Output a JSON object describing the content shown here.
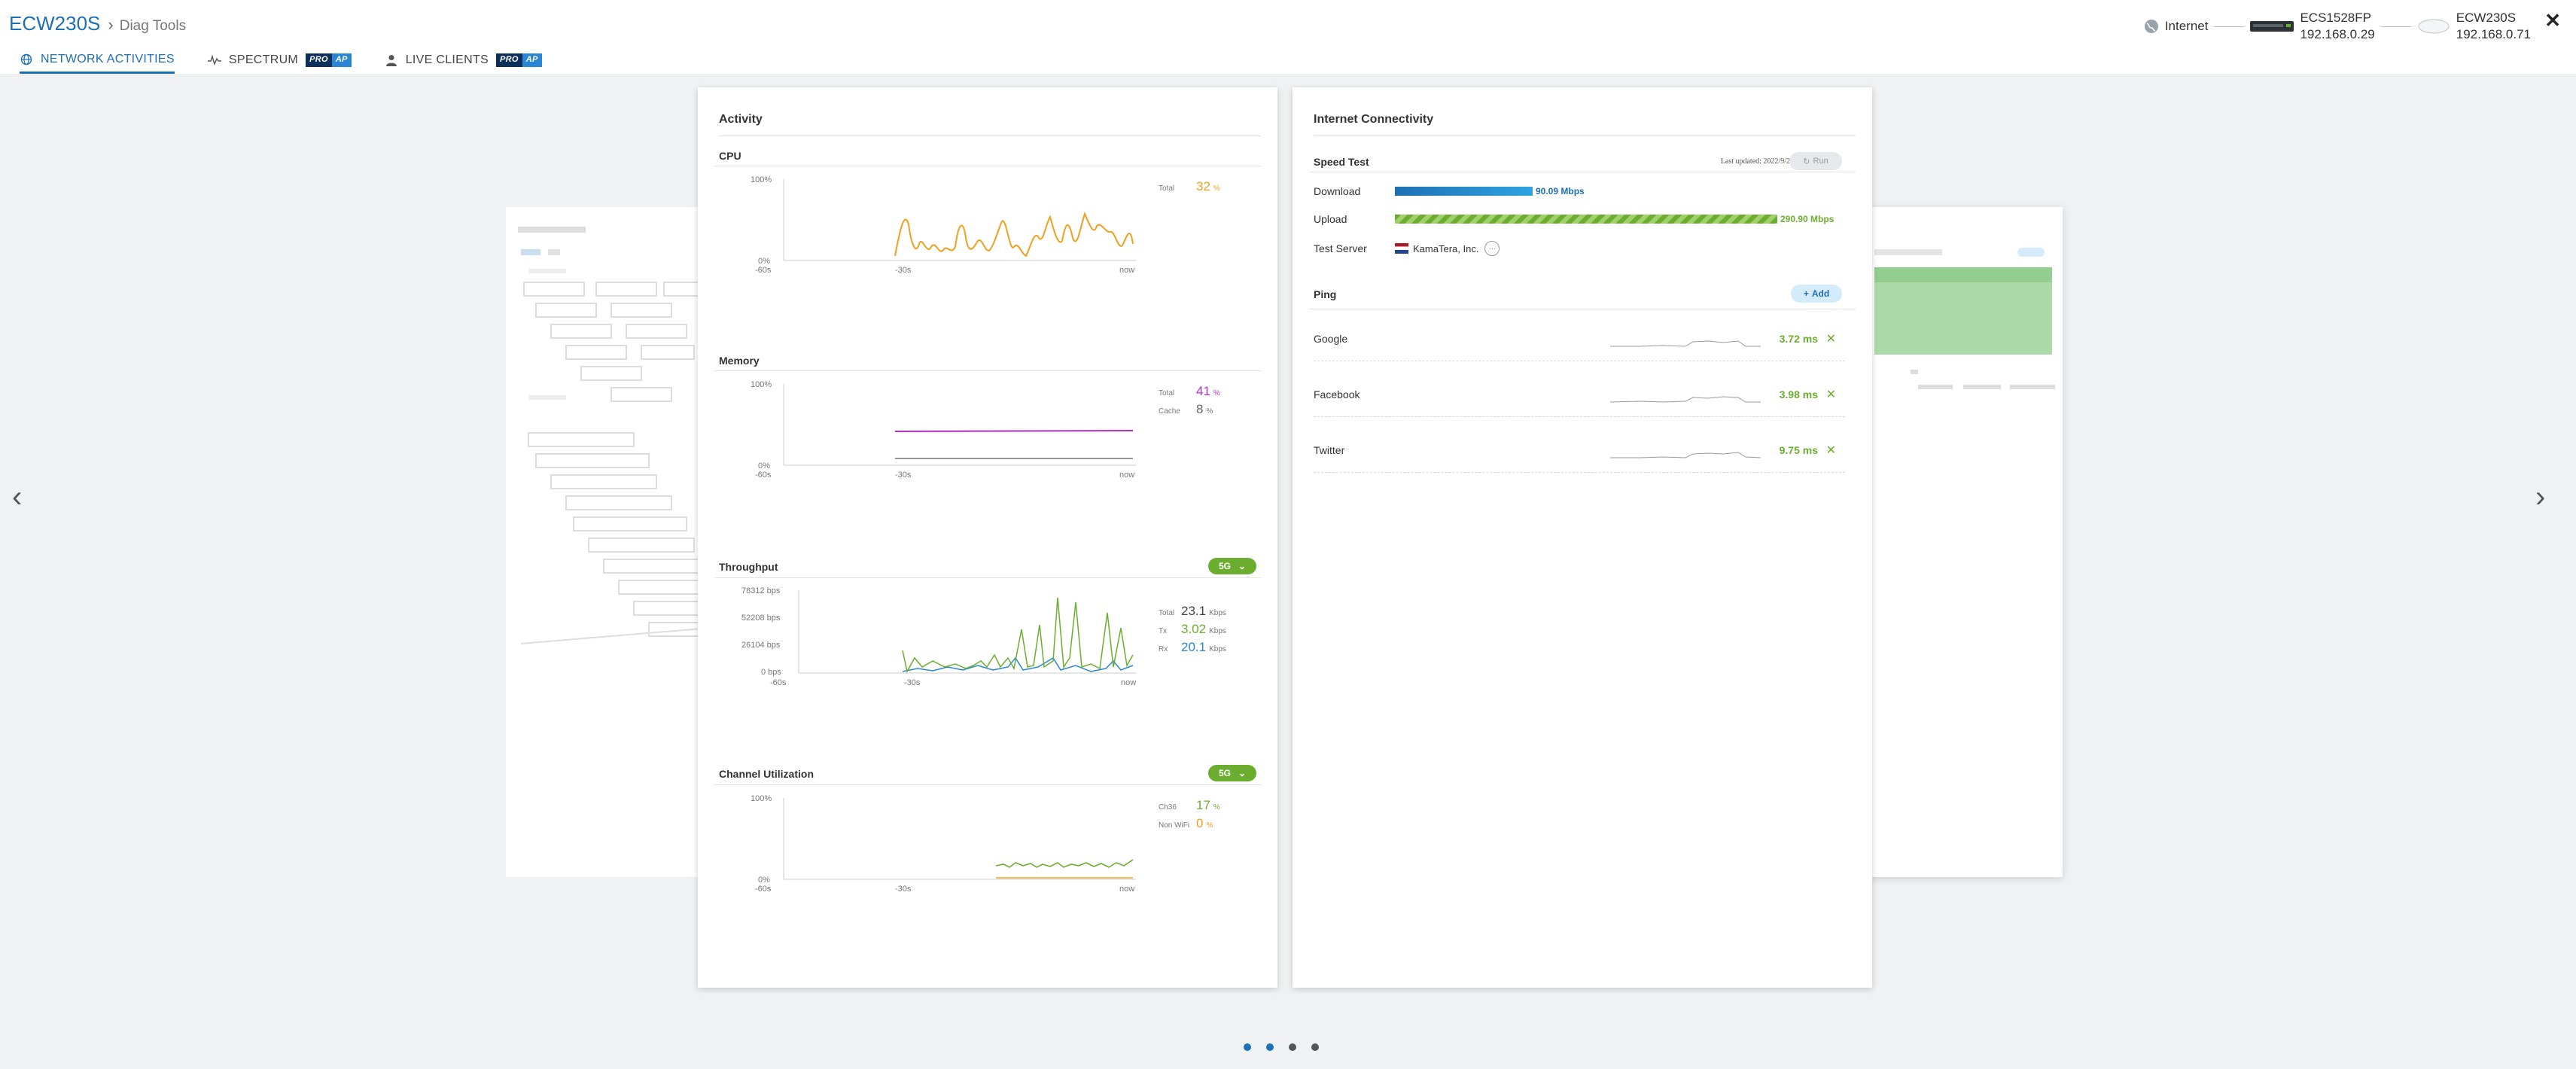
{
  "header": {
    "title": "ECW230S",
    "breadcrumb_sub": "Diag Tools",
    "tabs": [
      {
        "label": "NETWORK ACTIVITIES",
        "icon": "globe-icon",
        "active": true
      },
      {
        "label": "SPECTRUM",
        "icon": "pulse-icon",
        "badge": [
          "PRO",
          "AP"
        ]
      },
      {
        "label": "LIVE CLIENTS",
        "icon": "person-icon",
        "badge": [
          "PRO",
          "AP"
        ]
      }
    ],
    "topology": {
      "internet_label": "Internet",
      "switch_name": "ECS1528FP",
      "switch_ip": "192.168.0.29",
      "ap_name": "ECW230S",
      "ap_ip": "192.168.0.71"
    }
  },
  "activity": {
    "title": "Activity",
    "cpu": {
      "title": "CPU",
      "y_top": "100%",
      "y_bottom": "0%",
      "x_labels": [
        "-60s",
        "-30s",
        "now"
      ],
      "legend": [
        {
          "label": "Total",
          "value": "32",
          "unit": "%",
          "color": "#f0a020"
        }
      ]
    },
    "memory": {
      "title": "Memory",
      "y_top": "100%",
      "y_bottom": "0%",
      "x_labels": [
        "-60s",
        "-30s",
        "now"
      ],
      "legend": [
        {
          "label": "Total",
          "value": "41",
          "unit": "%",
          "color": "#b42ec8"
        },
        {
          "label": "Cache",
          "value": "8",
          "unit": "%",
          "color": "#666666"
        }
      ]
    },
    "throughput": {
      "title": "Throughput",
      "band": "5G",
      "y_labels": [
        "78312 bps",
        "52208 bps",
        "26104 bps",
        "0 bps"
      ],
      "x_labels": [
        "-60s",
        "-30s",
        "now"
      ],
      "legend": [
        {
          "label": "Total",
          "value": "23.1",
          "unit": "Kbps",
          "color": "#555555"
        },
        {
          "label": "Tx",
          "value": "3.02",
          "unit": "Kbps",
          "color": "#6bae2f"
        },
        {
          "label": "Rx",
          "value": "20.1",
          "unit": "Kbps",
          "color": "#2a86d4"
        }
      ]
    },
    "channel": {
      "title": "Channel Utilization",
      "band": "5G",
      "y_top": "100%",
      "y_bottom": "0%",
      "x_labels": [
        "-60s",
        "-30s",
        "now"
      ],
      "legend": [
        {
          "label": "Ch36",
          "value": "17",
          "unit": "%",
          "color": "#6bae2f"
        },
        {
          "label": "Non WiFi",
          "value": "0",
          "unit": "%",
          "color": "#f0a020"
        }
      ]
    }
  },
  "internet": {
    "title": "Internet Connectivity",
    "speed_test": {
      "title": "Speed Test",
      "last_updated": "Last updated: 2022/9/29",
      "run_label": "Run",
      "download_label": "Download",
      "download_value": "90.09 Mbps",
      "download_fraction": 0.36,
      "upload_label": "Upload",
      "upload_value": "290.90 Mbps",
      "upload_fraction": 1.0,
      "server_label": "Test Server",
      "server_value": "KamaTera, Inc."
    },
    "ping": {
      "title": "Ping",
      "add_label": "Add",
      "targets": [
        {
          "name": "Google",
          "value": "3.72 ms"
        },
        {
          "name": "Facebook",
          "value": "3.98 ms"
        },
        {
          "name": "Twitter",
          "value": "9.75 ms"
        }
      ]
    }
  },
  "colors": {
    "accent": "#1e6fb5",
    "cpu": "#f0a020",
    "memory": "#b42ec8",
    "tx": "#6bae2f",
    "rx": "#2a86d4",
    "band": "#6bae2f"
  },
  "pager": {
    "count": 4,
    "active": 0
  }
}
